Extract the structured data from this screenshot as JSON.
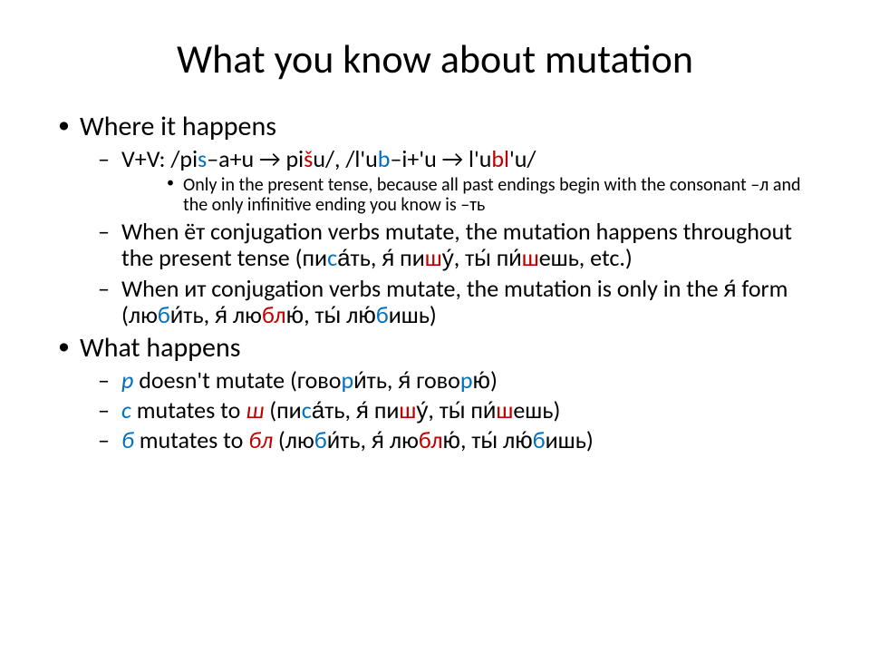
{
  "title": "What you know about mutation",
  "l1a": "Where it happens",
  "l2a_pre": "V+V: /pi",
  "l2a_s1": "s",
  "l2a_mid1": "–a+u → pi",
  "l2a_sh": "š",
  "l2a_mid2": "u/, /l'u",
  "l2a_b1": "b",
  "l2a_mid3": "–i+'u → l'u",
  "l2a_bl": "bl",
  "l2a_end": "'u/",
  "l3a": "Only in the present tense, because all past endings begin with the consonant –л and the only infinitive ending you know is –ть",
  "l2b_pre": "When ёт conjugation verbs mutate, the mutation happens throughout the present tense (пи",
  "l2b_s1": "с",
  "l2b_mid1": "а́ть, я́ пи",
  "l2b_sh1": "ш",
  "l2b_mid2": "у́, ты́ пи́",
  "l2b_sh2": "ш",
  "l2b_end": "ешь, etc.)",
  "l2c_pre": "When ит conjugation verbs mutate, the mutation is only in the я́ form (лю",
  "l2c_b1": "б",
  "l2c_mid1": "и́ть, я́ лю",
  "l2c_bl1": "бл",
  "l2c_mid2": "ю́, ты́ лю́",
  "l2c_b2": "б",
  "l2c_end": "ишь)",
  "l1b": "What happens",
  "l2d_pre": "",
  "l2d_p": "р",
  "l2d_mid1": " doesn't mutate (гово",
  "l2d_r1": "р",
  "l2d_mid2": "и́ть, я́ гово",
  "l2d_r2": "р",
  "l2d_end": "ю́)",
  "l2e_s": "с",
  "l2e_mid1": " mutates to ",
  "l2e_sh": "ш",
  "l2e_mid2": " (пи",
  "l2e_s2": "с",
  "l2e_mid3": "а́ть, я́ пи",
  "l2e_sh2": "ш",
  "l2e_mid4": "у́, ты́ пи́",
  "l2e_sh3": "ш",
  "l2e_end": "ешь)",
  "l2f_b": "б",
  "l2f_mid1": " mutates to ",
  "l2f_bl": "бл",
  "l2f_mid2": " (лю",
  "l2f_b2": "б",
  "l2f_mid3": "и́ть, я́ лю",
  "l2f_bl2": "бл",
  "l2f_mid4": "ю́, ты́ лю́",
  "l2f_b3": "б",
  "l2f_end": "ишь)"
}
